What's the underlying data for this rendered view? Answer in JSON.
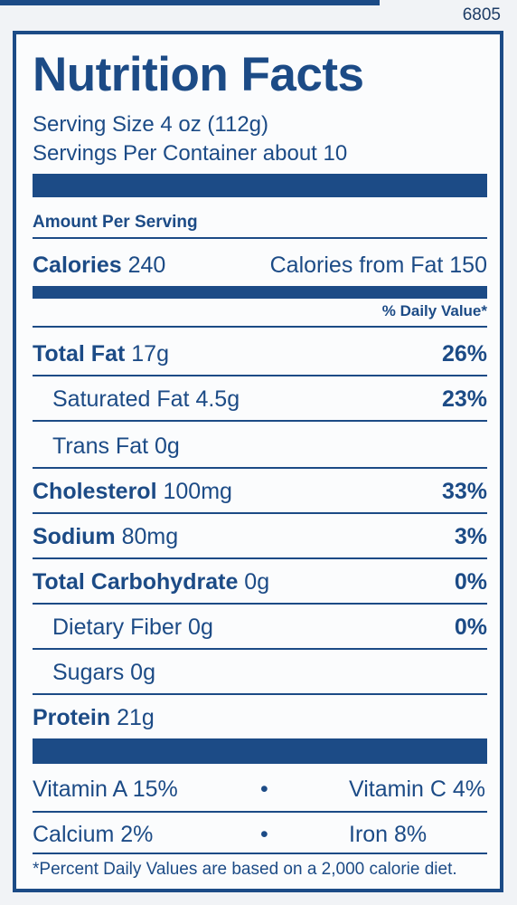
{
  "label_code": "6805",
  "title": "Nutrition Facts",
  "serving_size": "Serving Size 4 oz (112g)",
  "servings_per_container": "Servings Per Container about 10",
  "amount_per_serving": "Amount Per Serving",
  "calories": {
    "label": "Calories",
    "value": "240",
    "from_fat": "Calories from Fat 150"
  },
  "daily_value_header": "% Daily Value*",
  "nutrients": [
    {
      "name": "Total Fat",
      "amount": "17g",
      "dv": "26%"
    },
    {
      "name": "Saturated Fat",
      "amount": "4.5g",
      "dv": "23%"
    },
    {
      "name": "Trans Fat",
      "amount": "0g",
      "dv": ""
    },
    {
      "name": "Cholesterol",
      "amount": "100mg",
      "dv": "33%"
    },
    {
      "name": "Sodium",
      "amount": "80mg",
      "dv": "3%"
    },
    {
      "name": "Total Carbohydrate",
      "amount": "0g",
      "dv": "0%"
    },
    {
      "name": "Dietary Fiber",
      "amount": "0g",
      "dv": "0%"
    },
    {
      "name": "Sugars",
      "amount": "0g",
      "dv": ""
    },
    {
      "name": "Protein",
      "amount": "21g",
      "dv": ""
    }
  ],
  "vitamins": [
    {
      "left": "Vitamin A 15%",
      "right": "Vitamin C 4%"
    },
    {
      "left": "Calcium 2%",
      "right": "Iron 8%"
    }
  ],
  "bullet": "•",
  "footnote": "*Percent Daily Values are based on a 2,000 calorie diet.",
  "colors": {
    "ink": "#1c4b86",
    "paper": "#fbfcfd"
  }
}
